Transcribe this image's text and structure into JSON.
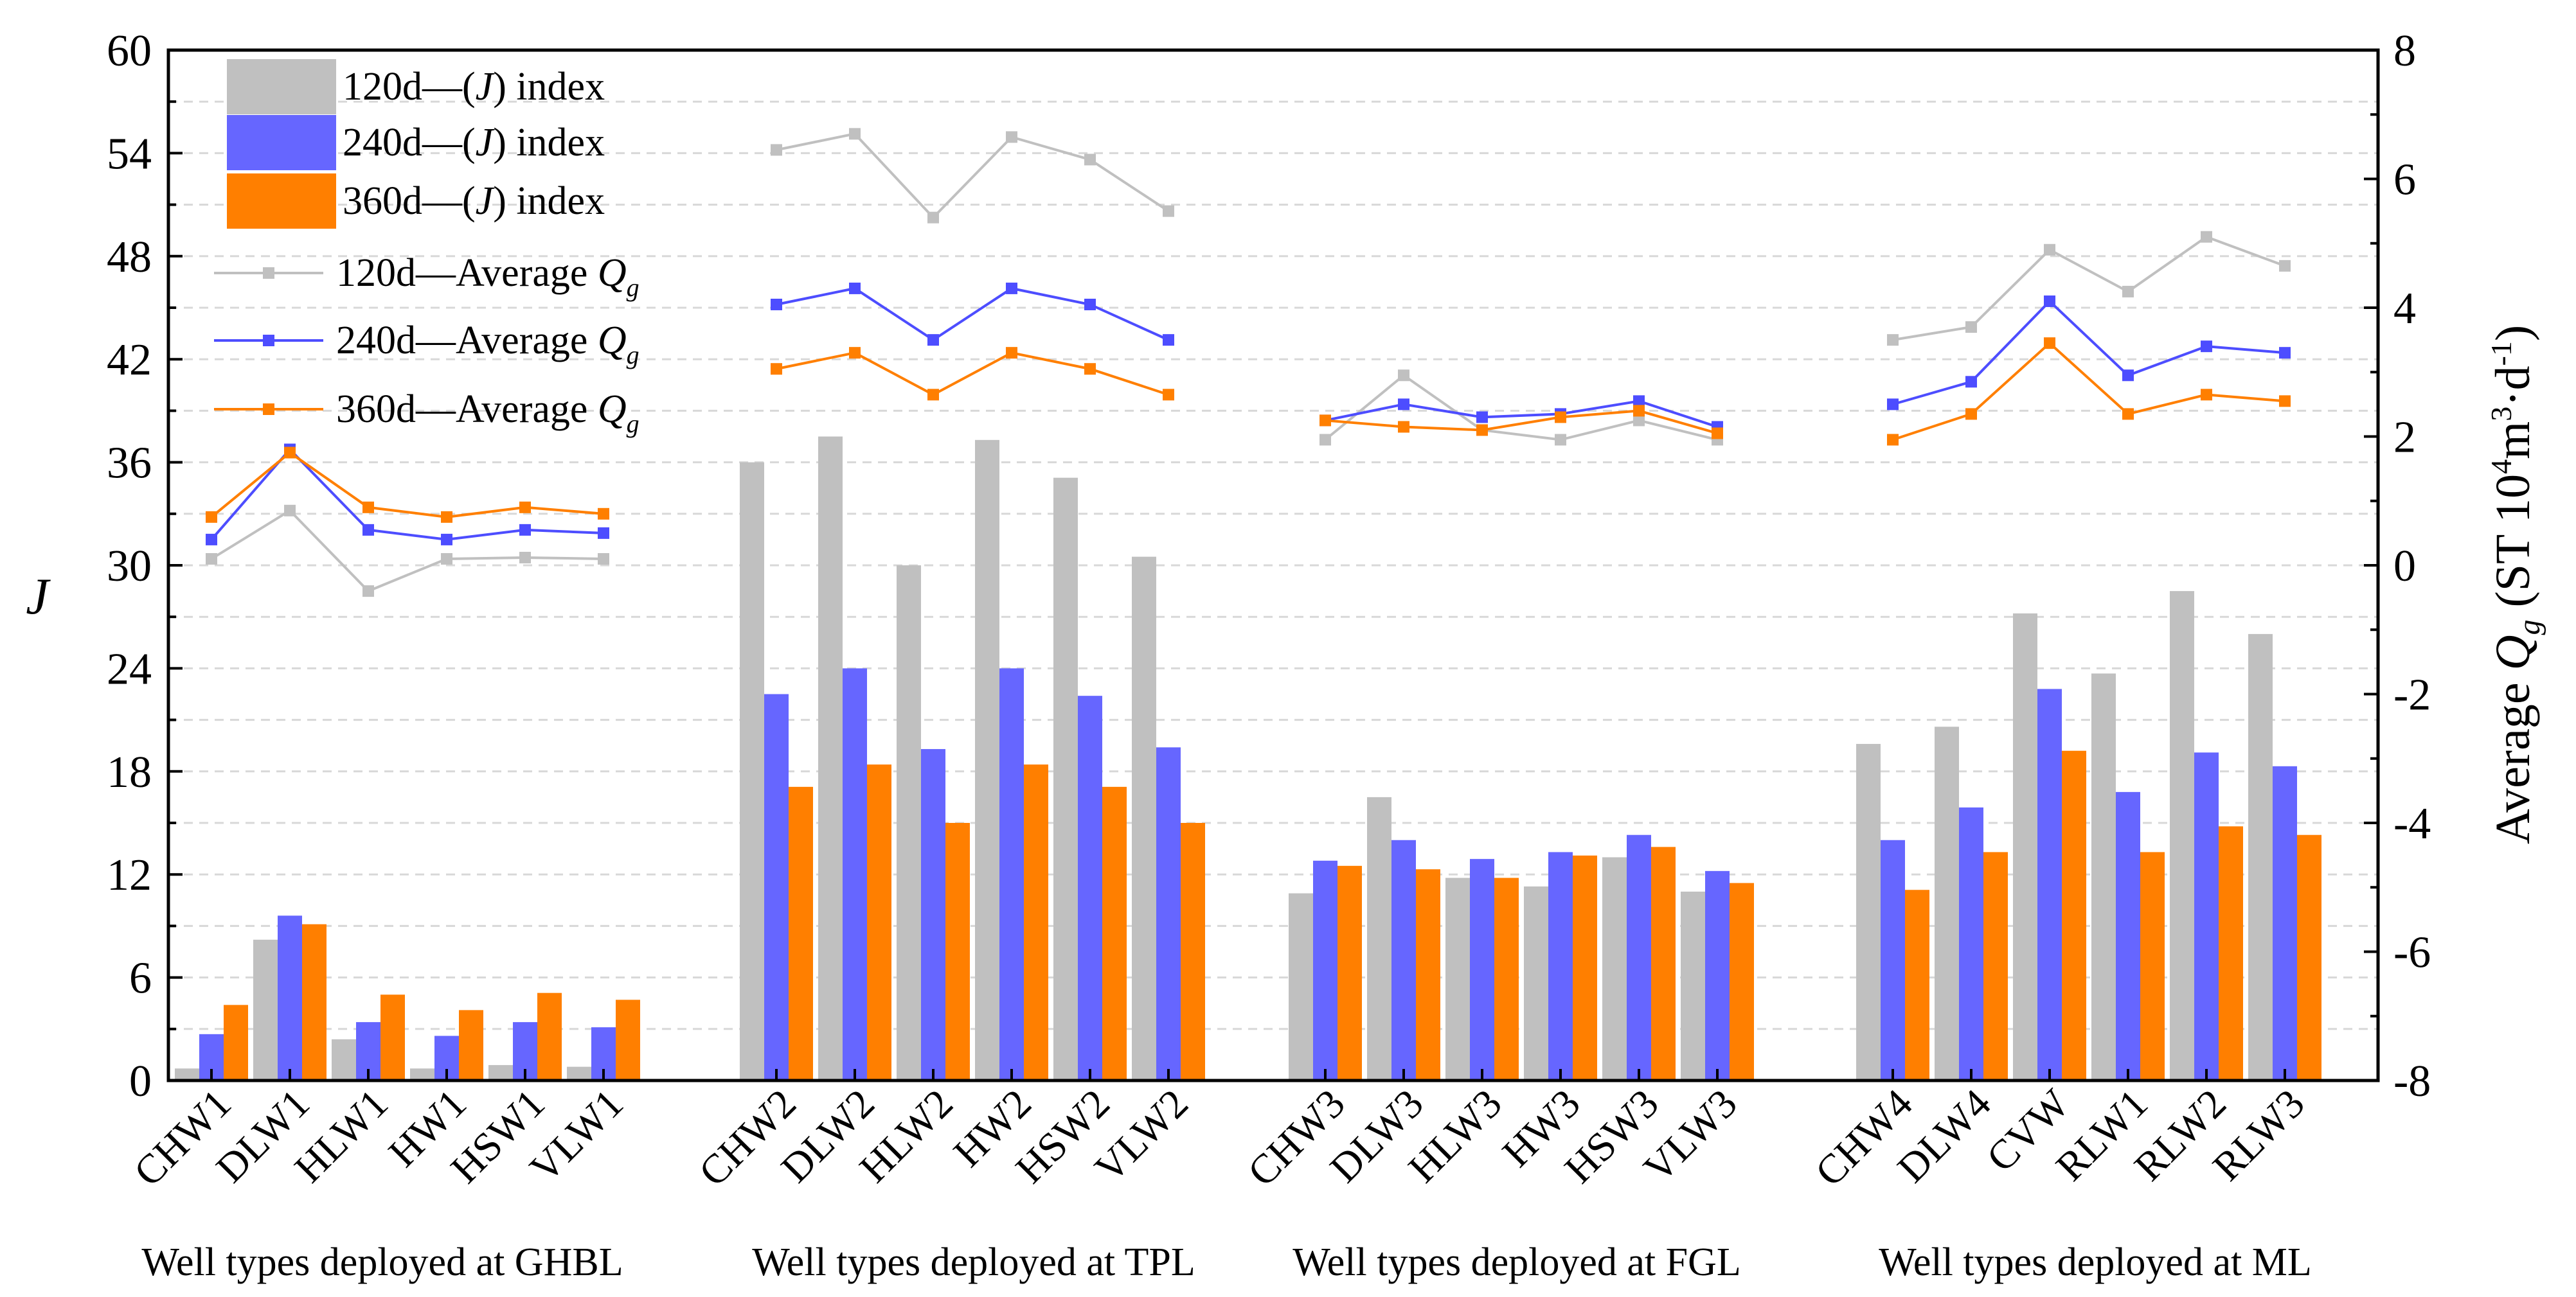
{
  "chart_data": {
    "type": "bar",
    "categories": [
      "CHW1",
      "DLW1",
      "HLW1",
      "HW1",
      "HSW1",
      "VLW1",
      "CHW2",
      "DLW2",
      "HLW2",
      "HW2",
      "HSW2",
      "VLW2",
      "CHW3",
      "DLW3",
      "HLW3",
      "HW3",
      "HSW3",
      "VLW3",
      "CHW4",
      "DLW4",
      "CVW",
      "RLW1",
      "RLW2",
      "RLW3"
    ],
    "groups": [
      {
        "label": "Well types deployed at GHBL"
      },
      {
        "label": "Well types deployed at TPL"
      },
      {
        "label": "Well types deployed at FGL"
      },
      {
        "label": "Well types deployed at ML"
      }
    ],
    "left_axis": {
      "label": "J",
      "ylim": [
        0,
        60
      ],
      "ticks": [
        "0",
        "6",
        "12",
        "18",
        "24",
        "30",
        "36",
        "42",
        "48",
        "54",
        "60"
      ]
    },
    "right_axis": {
      "label_prefix": "Average ",
      "label_symbol": "Q",
      "label_subscript": "g",
      "label_units": " (ST 10",
      "label_units_sup1": "4",
      "label_units_mid": "m",
      "label_units_sup2": "3",
      "label_units_dot": "·d",
      "label_units_sup3": "-1",
      "label_units_end": ")",
      "ylim": [
        -8,
        8
      ],
      "ticks": [
        "-8",
        "-6",
        "-4",
        "-2",
        "0",
        "2",
        "4",
        "6",
        "8"
      ]
    },
    "bar_series": [
      {
        "name": "120d",
        "legend_mid": "—(",
        "legend_sym": "J",
        "legend_end": ") index",
        "color": "#c0c0c0",
        "values": [
          0.7,
          8.2,
          2.4,
          0.7,
          0.9,
          0.8,
          36,
          37.5,
          30,
          37.3,
          35.1,
          30.5,
          10.9,
          16.5,
          11.8,
          11.3,
          13,
          11,
          19.6,
          20.6,
          27.2,
          23.7,
          28.5,
          26
        ]
      },
      {
        "name": "240d",
        "legend_mid": "—(",
        "legend_sym": "J",
        "legend_end": ") index",
        "color": "#6666ff",
        "values": [
          2.7,
          9.6,
          3.4,
          2.6,
          3.4,
          3.1,
          22.5,
          24,
          19.3,
          24,
          22.4,
          19.4,
          12.8,
          14,
          12.9,
          13.3,
          14.3,
          12.2,
          14,
          15.9,
          22.8,
          16.8,
          19.1,
          18.3
        ]
      },
      {
        "name": "360d",
        "legend_mid": "—(",
        "legend_sym": "J",
        "legend_end": ") index",
        "color": "#ff7f00",
        "values": [
          4.4,
          9.1,
          5,
          4.1,
          5.1,
          4.7,
          17.1,
          18.4,
          15,
          18.4,
          17.1,
          15,
          12.5,
          12.3,
          11.8,
          13.1,
          13.6,
          11.5,
          11.1,
          13.3,
          19.2,
          13.3,
          14.8,
          14.3
        ]
      }
    ],
    "line_series": [
      {
        "name": "120d",
        "legend_mid": "—Average ",
        "legend_sym": "Q",
        "legend_sub": "g",
        "color": "#c0c0c0",
        "values": [
          [
            0.1,
            0.85,
            -0.4,
            0.1,
            0.12,
            0.1
          ],
          [
            6.45,
            6.7,
            5.4,
            6.65,
            6.3,
            5.5
          ],
          [
            1.95,
            2.95,
            2.1,
            1.95,
            2.25,
            1.95
          ],
          [
            3.5,
            3.7,
            4.9,
            4.25,
            5.1,
            4.65
          ]
        ]
      },
      {
        "name": "240d",
        "legend_mid": "—Average ",
        "legend_sym": "Q",
        "legend_sub": "g",
        "color": "#4d4dff",
        "values": [
          [
            0.4,
            1.8,
            0.55,
            0.4,
            0.55,
            0.5
          ],
          [
            4.05,
            4.3,
            3.5,
            4.3,
            4.05,
            3.5
          ],
          [
            2.25,
            2.5,
            2.3,
            2.35,
            2.55,
            2.15
          ],
          [
            2.5,
            2.85,
            4.1,
            2.95,
            3.4,
            3.3
          ]
        ]
      },
      {
        "name": "360d",
        "legend_mid": "—Average ",
        "legend_sym": "Q",
        "legend_sub": "g",
        "color": "#ff7f00",
        "values": [
          [
            0.75,
            1.75,
            0.9,
            0.75,
            0.9,
            0.8
          ],
          [
            3.05,
            3.3,
            2.65,
            3.3,
            3.05,
            2.65
          ],
          [
            2.25,
            2.15,
            2.1,
            2.3,
            2.4,
            2.05
          ],
          [
            1.95,
            2.35,
            3.45,
            2.35,
            2.65,
            2.55
          ]
        ]
      }
    ]
  }
}
